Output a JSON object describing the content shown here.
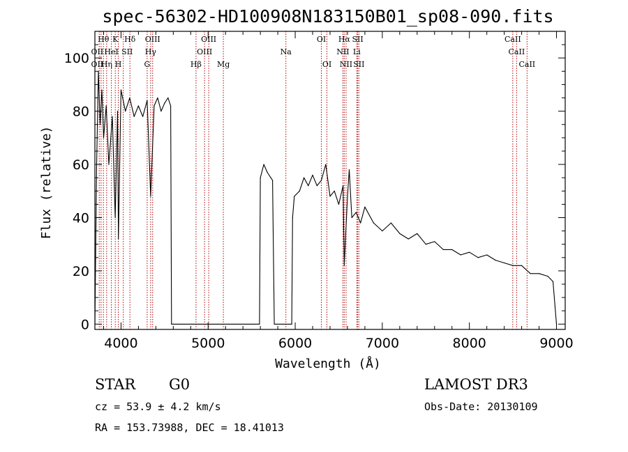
{
  "chart_data": {
    "type": "line",
    "title": "spec-56302-HD100908N183150B01_sp08-090.fits",
    "xlabel": "Wavelength (Å)",
    "ylabel": "Flux (relative)",
    "xlim": [
      3700,
      9100
    ],
    "ylim": [
      -2,
      110
    ],
    "xticks": [
      4000,
      5000,
      6000,
      7000,
      8000,
      9000
    ],
    "yticks": [
      0,
      20,
      40,
      60,
      80,
      100
    ],
    "grid": false,
    "series": [
      {
        "name": "spectrum",
        "x": [
          3700,
          3720,
          3740,
          3760,
          3780,
          3800,
          3830,
          3860,
          3900,
          3933,
          3960,
          3970,
          4000,
          4050,
          4100,
          4150,
          4200,
          4250,
          4300,
          4340,
          4380,
          4420,
          4460,
          4500,
          4540,
          4570,
          4580,
          4600,
          5590,
          5600,
          5640,
          5680,
          5720,
          5740,
          5760,
          5960,
          5970,
          5990,
          6050,
          6100,
          6150,
          6200,
          6250,
          6300,
          6350,
          6400,
          6450,
          6500,
          6550,
          6563,
          6600,
          6620,
          6650,
          6700,
          6750,
          6800,
          6900,
          7000,
          7100,
          7200,
          7300,
          7400,
          7500,
          7600,
          7700,
          7800,
          7900,
          8000,
          8100,
          8200,
          8300,
          8400,
          8500,
          8600,
          8700,
          8800,
          8900,
          8960,
          9000
        ],
        "values": [
          0,
          60,
          95,
          75,
          88,
          70,
          82,
          60,
          78,
          40,
          80,
          32,
          88,
          80,
          85,
          78,
          82,
          78,
          84,
          48,
          82,
          85,
          80,
          83,
          85,
          82,
          0,
          0,
          0,
          55,
          60,
          57,
          55,
          54,
          0,
          0,
          40,
          48,
          50,
          55,
          52,
          56,
          52,
          54,
          60,
          48,
          50,
          45,
          52,
          22,
          48,
          58,
          40,
          42,
          38,
          44,
          38,
          35,
          38,
          34,
          32,
          34,
          30,
          31,
          28,
          28,
          26,
          27,
          25,
          26,
          24,
          23,
          22,
          22,
          19,
          19,
          18,
          16,
          0
        ]
      }
    ],
    "line_markers": {
      "wavelengths": [
        3750,
        3771,
        3798,
        3835,
        3889,
        3934,
        3969,
        4026,
        4102,
        4300,
        4340,
        4363,
        4861,
        4959,
        5007,
        5175,
        5893,
        6300,
        6364,
        6548,
        6563,
        6584,
        6707,
        6717,
        6731,
        8498,
        8542,
        8662
      ],
      "labels": [
        {
          "text": "Hθ",
          "wavelength": 3798,
          "row": 1
        },
        {
          "text": "K",
          "wavelength": 3934,
          "row": 1
        },
        {
          "text": "Hδ",
          "wavelength": 4102,
          "row": 1
        },
        {
          "text": "OIII",
          "wavelength": 4363,
          "row": 1
        },
        {
          "text": "OIII",
          "wavelength": 5007,
          "row": 1
        },
        {
          "text": "OI",
          "wavelength": 6300,
          "row": 1
        },
        {
          "text": "Hα",
          "wavelength": 6563,
          "row": 1
        },
        {
          "text": "SII",
          "wavelength": 6717,
          "row": 1
        },
        {
          "text": "CaII",
          "wavelength": 8498,
          "row": 1
        },
        {
          "text": "OII",
          "wavelength": 3727,
          "row": 2
        },
        {
          "text": "HeI",
          "wavelength": 3889,
          "row": 2
        },
        {
          "text": "SII",
          "wavelength": 4070,
          "row": 2
        },
        {
          "text": "Hγ",
          "wavelength": 4340,
          "row": 2
        },
        {
          "text": "OIII",
          "wavelength": 4959,
          "row": 2
        },
        {
          "text": "Na",
          "wavelength": 5893,
          "row": 2
        },
        {
          "text": "NII",
          "wavelength": 6548,
          "row": 2
        },
        {
          "text": "Li",
          "wavelength": 6707,
          "row": 2
        },
        {
          "text": "CaII",
          "wavelength": 8542,
          "row": 2
        },
        {
          "text": "OII",
          "wavelength": 3727,
          "row": 3
        },
        {
          "text": "Hη",
          "wavelength": 3835,
          "row": 3
        },
        {
          "text": "H",
          "wavelength": 3969,
          "row": 3
        },
        {
          "text": "G",
          "wavelength": 4300,
          "row": 3
        },
        {
          "text": "Hβ",
          "wavelength": 4861,
          "row": 3
        },
        {
          "text": "Mg",
          "wavelength": 5175,
          "row": 3
        },
        {
          "text": "OI",
          "wavelength": 6364,
          "row": 3
        },
        {
          "text": "NII",
          "wavelength": 6584,
          "row": 3
        },
        {
          "text": "SII",
          "wavelength": 6731,
          "row": 3
        },
        {
          "text": "CaII",
          "wavelength": 8662,
          "row": 3
        }
      ]
    }
  },
  "info": {
    "object_class": "STAR",
    "subclass": "G0",
    "survey": "LAMOST DR3",
    "redshift": "cz = 53.9 ± 4.2 km/s",
    "obs_date": "Obs-Date: 20130109",
    "coords": "RA = 153.73988, DEC =  18.41013"
  }
}
